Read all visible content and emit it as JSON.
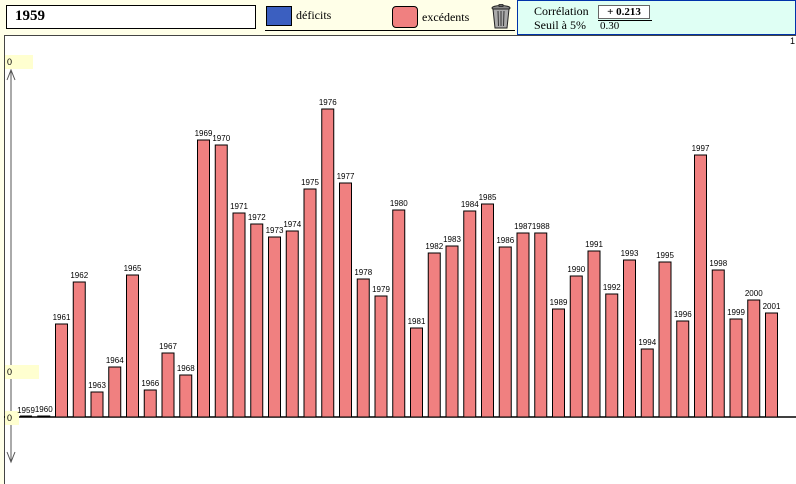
{
  "header": {
    "selected_year": "1959",
    "legend_deficits": "déficits",
    "legend_excedents": "excédents",
    "deficit_color": "#3b5fc0",
    "excedent_color": "#f08080",
    "trash_icon": "trash-icon"
  },
  "correlation": {
    "label": "Corrélation",
    "value": "+ 0.213",
    "threshold_label": "Seuil à 5%",
    "threshold_value": "0.30"
  },
  "axis": {
    "ticks": [
      "0",
      "0",
      "0"
    ],
    "corner_label": "1"
  },
  "chart_data": {
    "type": "bar",
    "categories": [
      "1959",
      "1960",
      "1961",
      "1962",
      "1963",
      "1964",
      "1965",
      "1966",
      "1967",
      "1968",
      "1969",
      "1970",
      "1971",
      "1972",
      "1973",
      "1974",
      "1975",
      "1976",
      "1977",
      "1978",
      "1979",
      "1980",
      "1981",
      "1982",
      "1983",
      "1984",
      "1985",
      "1986",
      "1987",
      "1988",
      "1989",
      "1990",
      "1991",
      "1992",
      "1993",
      "1994",
      "1995",
      "1996",
      "1997",
      "1998",
      "1999",
      "2000",
      "2001"
    ],
    "values": [
      0,
      1,
      93,
      135,
      25,
      50,
      142,
      27,
      64,
      42,
      277,
      272,
      204,
      193,
      180,
      186,
      228,
      308,
      234,
      138,
      121,
      207,
      89,
      164,
      171,
      206,
      213,
      170,
      184,
      184,
      108,
      141,
      166,
      123,
      157,
      68,
      155,
      96,
      262,
      147,
      98,
      117,
      104
    ],
    "ylim": [
      0,
      330
    ],
    "series_colors": {
      "deficits": "#3b5fc0",
      "excedents": "#f08080"
    }
  }
}
